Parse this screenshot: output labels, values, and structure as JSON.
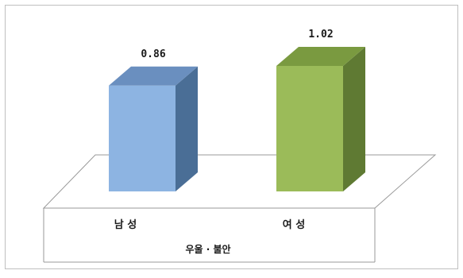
{
  "chart_data": {
    "type": "bar",
    "categories": [
      "남 성",
      "여 성"
    ],
    "group_label": "우울 · 불안",
    "values": [
      0.86,
      1.02
    ],
    "data_labels": [
      "0.86",
      "1.02"
    ],
    "title": "",
    "xlabel": "",
    "ylabel": "",
    "grid": false,
    "style": "3d",
    "colors": [
      {
        "front": "#8db4e2",
        "side": "#4a6e96",
        "top": "#6a8fbf"
      },
      {
        "front": "#9bbb59",
        "side": "#5f7a33",
        "top": "#7a9a40"
      }
    ]
  }
}
